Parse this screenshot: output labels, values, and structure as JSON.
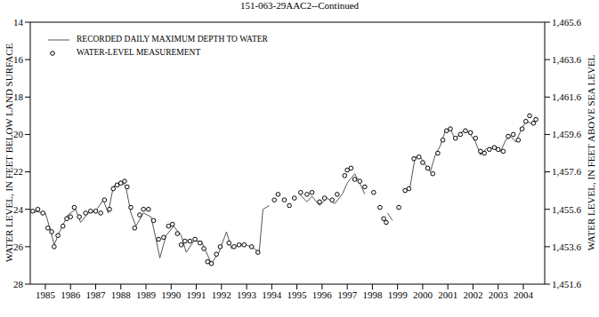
{
  "chart_data": {
    "type": "line",
    "title": "151-063-29AAC2--Continued",
    "y_label": "WATER LEVEL, IN FEET BELOW LAND SURFACE",
    "y2_label": "WATER LEVEL, IN FEET ABOVE SEA LEVEL",
    "legend": "upper left",
    "xlim": [
      1984.4,
      2004.85
    ],
    "xticks": [
      1985,
      1986,
      1987,
      1988,
      1989,
      1990,
      1991,
      1992,
      1993,
      1994,
      1995,
      1996,
      1997,
      1998,
      1999,
      2000,
      2001,
      2002,
      2003,
      2004
    ],
    "ylim": [
      28,
      14
    ],
    "yticks": [
      14,
      16,
      18,
      20,
      22,
      24,
      26,
      28
    ],
    "y2lim": [
      1451.6,
      1465.6
    ],
    "y2ticks": [
      {
        "value": 1451.6,
        "label": "1,451.6"
      },
      {
        "value": 1453.6,
        "label": "1,453.6"
      },
      {
        "value": 1455.6,
        "label": "1,455.6"
      },
      {
        "value": 1457.6,
        "label": "1,457.6"
      },
      {
        "value": 1459.6,
        "label": "1,459.6"
      },
      {
        "value": 1461.6,
        "label": "1,461.6"
      },
      {
        "value": 1463.6,
        "label": "1,463.6"
      },
      {
        "value": 1465.6,
        "label": "1,465.6"
      }
    ],
    "series": [
      {
        "name": "RECORDED DAILY MAXIMUM DEPTH TO WATER",
        "type": "line",
        "color": "#555555",
        "line_style": "solid",
        "x": [
          1984.5,
          1985.0,
          1985.2,
          1985.35,
          1985.6,
          1985.9,
          1986.2,
          1986.4,
          1986.7,
          1987.0,
          1987.3,
          1987.5,
          1987.7,
          1988.0,
          1988.2,
          1988.4,
          1988.6,
          1988.9,
          1989.2,
          1989.4,
          1989.55,
          1989.8,
          1990.1,
          1990.4,
          1990.6,
          1990.9,
          1991.2,
          1991.4,
          1991.6,
          1991.9,
          1992.2,
          1992.4,
          1992.7,
          1993.0,
          1993.3,
          1993.5,
          1993.65,
          1993.9,
          1994.0,
          1995.1,
          1995.4,
          1995.6,
          1995.9,
          1996.2,
          1996.5,
          1996.8,
          1997.0,
          1997.3,
          1997.5,
          1997.7,
          1997.9,
          1998.6,
          1998.8,
          1998.9,
          1999.3,
          1999.5,
          1999.7,
          1999.9,
          2000.1,
          2000.3,
          2000.5,
          2000.7,
          2000.9,
          2001.1,
          2001.3,
          2001.5,
          2001.7,
          2001.9,
          2002.1,
          2002.3,
          2002.5,
          2002.7,
          2002.9,
          2003.1,
          2003.3,
          2003.5,
          2003.7,
          2003.9,
          2004.1,
          2004.3,
          2004.5
        ],
        "values": [
          24.1,
          24.2,
          25.1,
          25.9,
          25.1,
          24.3,
          24.0,
          24.7,
          24.2,
          24.1,
          23.5,
          24.2,
          22.8,
          22.5,
          22.8,
          24.2,
          24.9,
          24.2,
          24.4,
          25.6,
          26.6,
          25.4,
          24.9,
          25.4,
          26.3,
          25.7,
          25.7,
          26.3,
          26.9,
          26.3,
          25.2,
          26.1,
          25.9,
          25.9,
          26.1,
          26.3,
          24.0,
          23.8,
          null,
          23.2,
          23.6,
          23.3,
          23.8,
          23.4,
          23.7,
          23.2,
          22.6,
          22.1,
          22.6,
          23.2,
          null,
          24.2,
          24.6,
          null,
          23.0,
          22.8,
          21.2,
          21.2,
          21.6,
          22.0,
          21.1,
          20.6,
          19.8,
          19.7,
          20.3,
          19.9,
          19.8,
          20.0,
          20.4,
          21.1,
          20.8,
          20.7,
          20.8,
          20.9,
          20.3,
          20.1,
          20.4,
          19.8,
          19.3,
          19.4,
          19.2
        ]
      },
      {
        "name": "WATER-LEVEL MEASUREMENT",
        "type": "scatter",
        "marker": "circle",
        "color": "#000000",
        "x": [
          1984.5,
          1984.7,
          1984.9,
          1985.1,
          1985.25,
          1985.35,
          1985.5,
          1985.7,
          1985.85,
          1986.0,
          1986.15,
          1986.35,
          1986.6,
          1986.8,
          1987.0,
          1987.2,
          1987.35,
          1987.55,
          1987.7,
          1987.85,
          1988.0,
          1988.15,
          1988.25,
          1988.4,
          1988.55,
          1988.75,
          1988.9,
          1989.1,
          1989.3,
          1989.5,
          1989.7,
          1989.9,
          1990.05,
          1990.25,
          1990.4,
          1990.55,
          1990.75,
          1990.95,
          1991.15,
          1991.3,
          1991.45,
          1991.6,
          1991.8,
          1991.95,
          1992.3,
          1992.5,
          1992.7,
          1992.9,
          1993.2,
          1993.45,
          1994.1,
          1994.25,
          1994.5,
          1994.7,
          1994.9,
          1995.15,
          1995.4,
          1995.6,
          1995.9,
          1996.1,
          1996.4,
          1996.6,
          1996.9,
          1997.0,
          1997.15,
          1997.3,
          1997.5,
          1997.7,
          1998.05,
          1998.3,
          1998.45,
          1998.55,
          1999.05,
          1999.3,
          1999.45,
          1999.65,
          1999.85,
          2000.0,
          2000.2,
          2000.4,
          2000.6,
          2000.8,
          2000.95,
          2001.1,
          2001.3,
          2001.5,
          2001.7,
          2001.9,
          2002.1,
          2002.3,
          2002.45,
          2002.65,
          2002.85,
          2003.0,
          2003.2,
          2003.4,
          2003.6,
          2003.8,
          2003.95,
          2004.1,
          2004.25,
          2004.4,
          2004.5
        ],
        "values": [
          24.1,
          24.0,
          24.2,
          25.0,
          25.2,
          26.0,
          25.4,
          24.9,
          24.5,
          24.4,
          23.9,
          24.4,
          24.2,
          24.1,
          24.1,
          24.2,
          23.5,
          24.0,
          22.9,
          22.7,
          22.6,
          22.5,
          22.8,
          23.9,
          25.0,
          24.3,
          24.0,
          24.0,
          24.6,
          25.6,
          25.5,
          24.9,
          24.8,
          25.3,
          25.9,
          25.7,
          25.7,
          25.6,
          25.8,
          26.1,
          26.8,
          26.9,
          26.4,
          26.0,
          25.8,
          26.0,
          25.9,
          25.9,
          26.0,
          26.3,
          23.5,
          23.2,
          23.5,
          23.8,
          23.4,
          23.1,
          23.2,
          23.1,
          23.6,
          23.4,
          23.5,
          23.2,
          22.2,
          21.9,
          21.8,
          22.4,
          22.5,
          22.8,
          23.1,
          23.9,
          24.5,
          24.7,
          23.9,
          23.0,
          22.9,
          21.3,
          21.2,
          21.5,
          21.8,
          22.1,
          21.0,
          20.3,
          19.8,
          19.7,
          20.2,
          20.0,
          19.8,
          19.9,
          20.2,
          20.9,
          21.0,
          20.8,
          20.7,
          20.8,
          20.9,
          20.1,
          20.0,
          20.3,
          19.7,
          19.3,
          19.0,
          19.4,
          19.2
        ]
      }
    ]
  }
}
